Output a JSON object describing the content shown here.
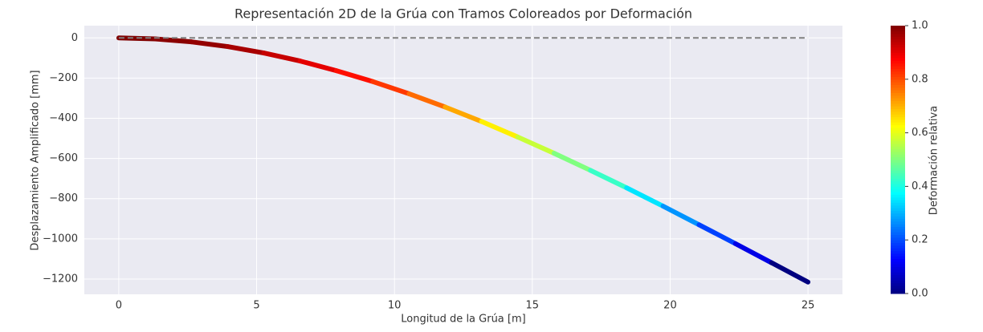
{
  "chart_data": {
    "type": "colored_line",
    "title": "Representación 2D de la Grúa con Tramos Coloreados por Deformación",
    "xlabel": "Longitud de la Grúa [m]",
    "ylabel": "Desplazamiento Amplificado [mm]",
    "x": [
      0,
      1.32,
      2.63,
      3.95,
      5.26,
      6.58,
      7.89,
      9.21,
      10.53,
      11.84,
      13.16,
      14.47,
      15.79,
      17.11,
      18.42,
      19.74,
      21.05,
      22.37,
      23.68,
      25
    ],
    "series": [
      {
        "values": [
          0,
          -5,
          -19.5,
          -43,
          -75,
          -115,
          -163,
          -217,
          -278,
          -344,
          -416,
          -493,
          -574,
          -659,
          -746,
          -837,
          -930,
          -1024,
          -1119,
          -1215
        ]
      }
    ],
    "deformation": [
      1.0,
      0.99,
      0.98,
      0.96,
      0.93,
      0.9,
      0.86,
      0.82,
      0.77,
      0.71,
      0.64,
      0.57,
      0.5,
      0.43,
      0.35,
      0.27,
      0.19,
      0.1,
      0.0
    ],
    "colormap": "jet",
    "reference_line": {
      "x": [
        0,
        25
      ],
      "values": [
        0,
        0
      ],
      "color": "#808080"
    },
    "xlim": [
      -1.25,
      26.25
    ],
    "ylim": [
      -1276,
      61
    ],
    "xticks": [
      0,
      5,
      10,
      15,
      20,
      25
    ],
    "yticks": [
      {
        "value": 0,
        "label": "0"
      },
      {
        "value": -200,
        "label": "−200"
      },
      {
        "value": -400,
        "label": "−400"
      },
      {
        "value": -600,
        "label": "−600"
      },
      {
        "value": -800,
        "label": "−800"
      },
      {
        "value": -1000,
        "label": "−1000"
      },
      {
        "value": -1200,
        "label": "−1200"
      }
    ],
    "grid": true,
    "colorbar": {
      "label": "Deformación relativa",
      "lim": [
        0,
        1
      ],
      "ticks": [
        {
          "value": 0,
          "label": "0.0"
        },
        {
          "value": 0.2,
          "label": "0.2"
        },
        {
          "value": 0.4,
          "label": "0.4"
        },
        {
          "value": 0.6,
          "label": "0.6"
        },
        {
          "value": 0.8,
          "label": "0.8"
        },
        {
          "value": 1,
          "label": "1.0"
        }
      ]
    }
  }
}
